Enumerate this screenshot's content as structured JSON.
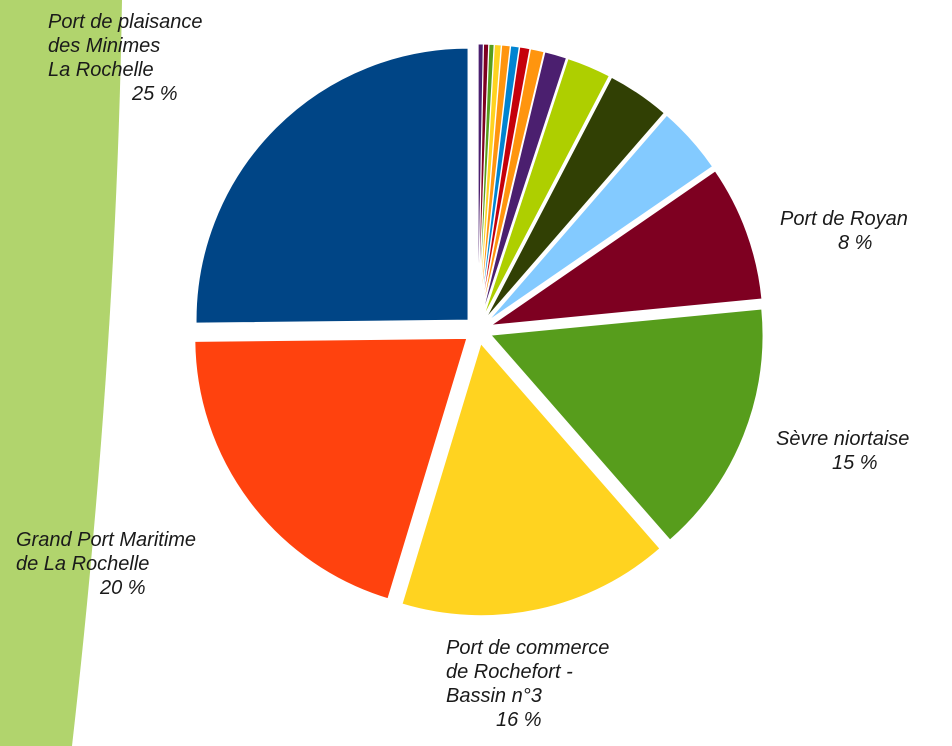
{
  "colors": {
    "band": "#b1d46d"
  },
  "chart_data": {
    "type": "pie",
    "title": "",
    "legend": "none",
    "slices": [
      {
        "label": "",
        "value": 0.3,
        "color": "#4b1f6f"
      },
      {
        "label": "",
        "value": 0.3,
        "color": "#7e0021"
      },
      {
        "label": "",
        "value": 0.3,
        "color": "#579d1c"
      },
      {
        "label": "",
        "value": 0.4,
        "color": "#ffd320"
      },
      {
        "label": "",
        "value": 0.5,
        "color": "#ff950e"
      },
      {
        "label": "",
        "value": 0.5,
        "color": "#0084d1"
      },
      {
        "label": "",
        "value": 0.6,
        "color": "#c5000b"
      },
      {
        "label": "",
        "value": 0.8,
        "color": "#ff950e"
      },
      {
        "label": "",
        "value": 1.3,
        "color": "#4b1f6f"
      },
      {
        "label": "",
        "value": 2.6,
        "color": "#aecf00"
      },
      {
        "label": "",
        "value": 3.7,
        "color": "#314004"
      },
      {
        "label": "",
        "value": 4.0,
        "color": "#83caff"
      },
      {
        "label": "Port de Royan",
        "value": 8,
        "display": "8 %",
        "color": "#7e0021"
      },
      {
        "label": "Sèvre niortaise",
        "value": 15,
        "display": "15 %",
        "color": "#579d1c"
      },
      {
        "label": "Port de commerce de Rochefort - Bassin n°3",
        "value": 16,
        "display": "16 %",
        "color": "#ffd320"
      },
      {
        "label": "Grand Port Maritime de La Rochelle",
        "value": 20,
        "display": "20 %",
        "color": "#ff420e"
      },
      {
        "label": "Port de plaisance des Minimes La Rochelle",
        "value": 25,
        "display": "25 %",
        "color": "#004586"
      }
    ]
  },
  "labels": {
    "minimes": {
      "lines": [
        "Port de plaisance",
        "des Minimes",
        "La Rochelle"
      ],
      "pct": "25 %"
    },
    "royan": {
      "lines": [
        "Port de Royan"
      ],
      "pct": "8 %"
    },
    "sevre": {
      "lines": [
        "Sèvre niortaise"
      ],
      "pct": "15 %"
    },
    "gpm": {
      "lines": [
        "Grand Port Maritime",
        "de La Rochelle"
      ],
      "pct": "20 %"
    },
    "rochefort": {
      "lines": [
        "Port de commerce",
        "de Rochefort -",
        "Bassin n°3"
      ],
      "pct": "16 %"
    }
  }
}
